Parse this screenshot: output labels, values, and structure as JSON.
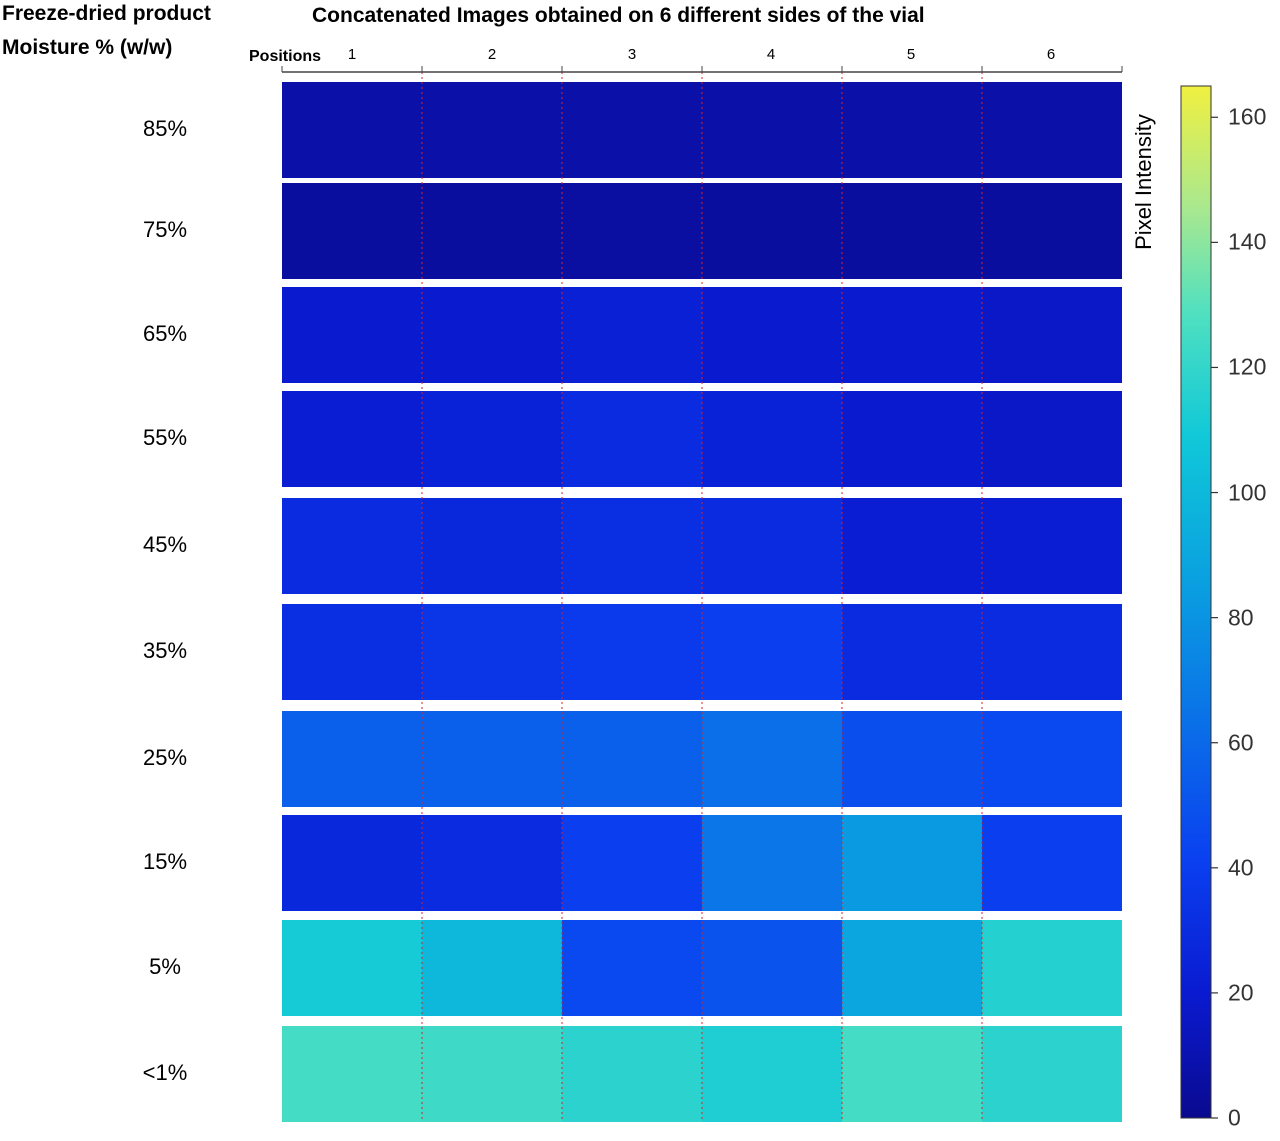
{
  "chart_data": {
    "type": "heatmap",
    "title": "Concatenated Images obtained on 6 different sides of the vial",
    "row_axis_title": [
      "Freeze-dried product",
      "Moisture % (w/w)"
    ],
    "column_axis_title": "Positions",
    "columns": [
      "1",
      "2",
      "3",
      "4",
      "5",
      "6"
    ],
    "rows": [
      "85%",
      "75%",
      "65%",
      "55%",
      "45%",
      "35%",
      "25%",
      "15%",
      "5%",
      "<1%"
    ],
    "colorbar": {
      "label": "Pixel Intensity",
      "range": [
        0,
        165
      ],
      "ticks": [
        0,
        20,
        40,
        60,
        80,
        100,
        120,
        140,
        160
      ],
      "colormap": [
        "#0a0a8f",
        "#0a1ad0",
        "#0a40f0",
        "#0a6fe8",
        "#0aa0e0",
        "#10c8d8",
        "#50e0c0",
        "#a8e890",
        "#f0f040"
      ]
    },
    "approx_mean_intensity": [
      [
        8,
        8,
        8,
        8,
        8,
        8
      ],
      [
        5,
        5,
        6,
        5,
        5,
        5
      ],
      [
        20,
        20,
        24,
        20,
        20,
        18
      ],
      [
        22,
        25,
        30,
        25,
        20,
        18
      ],
      [
        30,
        28,
        32,
        30,
        22,
        22
      ],
      [
        32,
        36,
        38,
        40,
        30,
        30
      ],
      [
        55,
        55,
        55,
        62,
        48,
        45
      ],
      [
        28,
        30,
        40,
        65,
        80,
        40
      ],
      [
        105,
        95,
        45,
        50,
        85,
        110
      ],
      [
        120,
        118,
        112,
        108,
        120,
        112
      ]
    ]
  }
}
